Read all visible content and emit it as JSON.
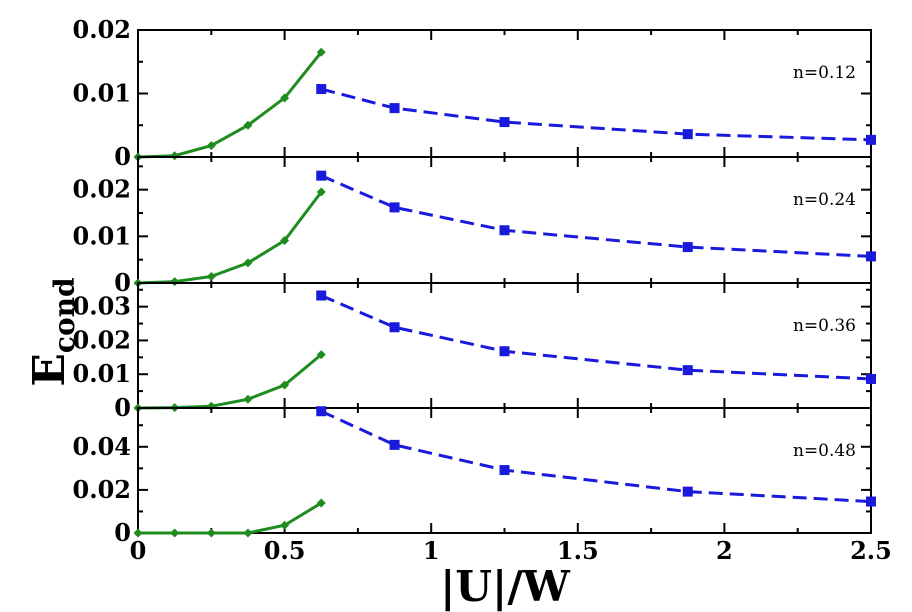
{
  "chart_data": {
    "type": "line",
    "xlabel": "|U|/W",
    "ylabel_main": "E",
    "ylabel_sub": "cond",
    "xlim": [
      0,
      2.5
    ],
    "xticks": [
      "0",
      "0.5",
      "1",
      "1.5",
      "2",
      "2.5"
    ],
    "colors": {
      "green": "#1e8c1e",
      "blue": "#1a1add"
    },
    "panels": [
      {
        "label": "n=0.12",
        "ylim": [
          0,
          0.02
        ],
        "yticks": [
          {
            "v": 0,
            "t": "0"
          },
          {
            "v": 0.01,
            "t": "0.01"
          },
          {
            "v": 0.02,
            "t": "0.02"
          }
        ],
        "green_series": {
          "x": [
            0,
            0.125,
            0.25,
            0.375,
            0.5,
            0.625
          ],
          "y": [
            0,
            0.0002,
            0.0018,
            0.005,
            0.0093,
            0.0165
          ]
        },
        "blue_series": {
          "x": [
            0.625,
            0.875,
            1.25,
            1.875,
            2.5
          ],
          "y": [
            0.0107,
            0.0077,
            0.0055,
            0.0036,
            0.0027
          ]
        }
      },
      {
        "label": "n=0.24",
        "ylim": [
          0,
          0.027
        ],
        "yticks": [
          {
            "v": 0,
            "t": "0"
          },
          {
            "v": 0.01,
            "t": "0.01"
          },
          {
            "v": 0.02,
            "t": "0.02"
          }
        ],
        "green_series": {
          "x": [
            0,
            0.125,
            0.25,
            0.375,
            0.5,
            0.625
          ],
          "y": [
            0,
            0.0003,
            0.0014,
            0.0043,
            0.0091,
            0.0195
          ]
        },
        "blue_series": {
          "x": [
            0.625,
            0.875,
            1.25,
            1.875,
            2.5
          ],
          "y": [
            0.023,
            0.0162,
            0.0113,
            0.0077,
            0.0057
          ]
        }
      },
      {
        "label": "n=0.36",
        "ylim": [
          0,
          0.037
        ],
        "yticks": [
          {
            "v": 0,
            "t": "0"
          },
          {
            "v": 0.01,
            "t": "0.01"
          },
          {
            "v": 0.02,
            "t": "0.02"
          },
          {
            "v": 0.03,
            "t": "0.03"
          }
        ],
        "green_series": {
          "x": [
            0,
            0.125,
            0.25,
            0.375,
            0.5,
            0.625
          ],
          "y": [
            0,
            0.0001,
            0.0005,
            0.0026,
            0.0068,
            0.0158
          ]
        },
        "blue_series": {
          "x": [
            0.625,
            0.875,
            1.25,
            1.875,
            2.5
          ],
          "y": [
            0.0333,
            0.0239,
            0.0168,
            0.0112,
            0.0086
          ]
        }
      },
      {
        "label": "n=0.48",
        "ylim": [
          0,
          0.058
        ],
        "yticks": [
          {
            "v": 0,
            "t": "0"
          },
          {
            "v": 0.02,
            "t": "0.02"
          },
          {
            "v": 0.04,
            "t": "0.04"
          }
        ],
        "green_series": {
          "x": [
            0,
            0.125,
            0.25,
            0.375,
            0.5,
            0.625
          ],
          "y": [
            0,
            0,
            0,
            0,
            0.0036,
            0.0139
          ]
        },
        "blue_series": {
          "x": [
            0.625,
            0.875,
            1.25,
            1.875,
            2.5
          ],
          "y": [
            0.0565,
            0.0409,
            0.0292,
            0.0192,
            0.0146
          ]
        }
      }
    ]
  }
}
